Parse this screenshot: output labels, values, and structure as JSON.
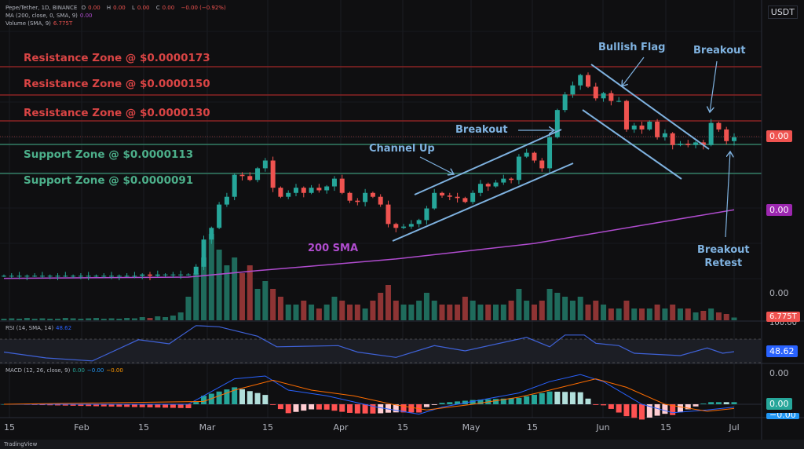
{
  "header": {
    "symbol": "Pepe/Tether, 1D, BINANCE",
    "o_label": "O",
    "o_value": "0.00",
    "h_label": "H",
    "h_value": "0.00",
    "l_label": "L",
    "l_value": "0.00",
    "c_label": "C",
    "c_value": "0.00",
    "change": "−0.00 (−0.92%)",
    "ma_label": "MA (200, close, 0, SMA, 9)",
    "ma_value": "0.00",
    "volume_label": "Volume (SMA, 9)",
    "volume_value": "6.775T",
    "currency": "USDT"
  },
  "zones": {
    "r1": "Resistance Zone @ $0.0000173",
    "r2": "Resistance Zone @ $0.0000150",
    "r3": "Resistance Zone @ $0.0000130",
    "s1": "Support Zone @ $0.0000113",
    "s2": "Support Zone @ $0.0000091"
  },
  "annotations": {
    "channel_up": "Channel Up",
    "breakout1": "Breakout",
    "bullish_flag": "Bullish Flag",
    "breakout2": "Breakout",
    "retest_line1": "Breakout",
    "retest_line2": "Retest",
    "sma": "200 SMA"
  },
  "price_axis": {
    "last_price": "0.00",
    "sma_price": "0.00",
    "volume_top": "0.00",
    "volume_last": "6.775T",
    "rsi_top": "100.00",
    "rsi_last": "48.62",
    "macd_top": "0.00",
    "macd_hist": "0.00",
    "macd_line": "−0.00"
  },
  "rsi": {
    "label": "RSI (14, SMA, 14)",
    "value": "48.62"
  },
  "macd": {
    "label": "MACD (12, 26, close, 9)",
    "v1": "0.00",
    "v2": "−0.00",
    "v3": "−0.00"
  },
  "time_axis": [
    "15",
    "Feb",
    "15",
    "Mar",
    "15",
    "Apr",
    "15",
    "May",
    "15",
    "Jun",
    "15",
    "Jul"
  ],
  "branding": "TradingView",
  "colors": {
    "up": "#26a69a",
    "down": "#ef5350",
    "sma": "#b04ccf",
    "annotation": "#7fb2e0",
    "resistance": "#8a2424",
    "support": "#2f6f5a",
    "rsi": "#3f62d8",
    "macd": "#2962ff",
    "signal": "#ff6d00"
  },
  "chart_data": {
    "type": "candlestick",
    "title": "Pepe/Tether, 1D, BINANCE",
    "price_unit": "0.0000001 USDT",
    "ylim": [
      5,
      185
    ],
    "x_ticks": [
      "15",
      "Feb",
      "15",
      "Mar",
      "15",
      "Apr",
      "15",
      "May",
      "15",
      "Jun",
      "15",
      "Jul"
    ],
    "horizontal_levels": [
      173,
      150,
      130,
      113,
      91
    ],
    "closes": [
      12,
      12,
      12,
      12,
      12,
      12,
      12,
      12,
      12,
      12,
      12,
      12,
      12,
      12,
      12,
      12,
      12,
      12,
      13,
      12,
      13,
      13,
      13,
      13,
      13,
      19,
      40,
      49,
      67,
      73,
      90,
      89,
      86,
      95,
      101,
      80,
      73,
      76,
      80,
      76,
      80,
      78,
      81,
      87,
      76,
      70,
      69,
      76,
      73,
      67,
      52,
      49,
      50,
      52,
      55,
      64,
      76,
      74,
      73,
      72,
      69,
      76,
      83,
      81,
      84,
      87,
      86,
      104,
      107,
      101,
      95,
      119,
      140,
      152,
      159,
      167,
      158,
      149,
      153,
      147,
      147,
      125,
      128,
      125,
      131,
      119,
      122,
      113,
      114,
      113,
      115,
      113,
      130,
      125,
      116,
      119
    ],
    "volume_unit": "T",
    "volumes": [
      4,
      5,
      4,
      6,
      4,
      5,
      4,
      4,
      6,
      5,
      4,
      5,
      6,
      4,
      5,
      4,
      6,
      5,
      8,
      6,
      10,
      8,
      12,
      20,
      60,
      120,
      160,
      220,
      180,
      140,
      160,
      120,
      140,
      80,
      100,
      80,
      60,
      40,
      40,
      50,
      40,
      30,
      40,
      60,
      50,
      40,
      40,
      30,
      50,
      70,
      90,
      50,
      40,
      40,
      50,
      70,
      50,
      40,
      40,
      40,
      60,
      50,
      40,
      40,
      40,
      40,
      50,
      80,
      50,
      40,
      50,
      80,
      70,
      60,
      50,
      60,
      40,
      50,
      40,
      30,
      30,
      50,
      30,
      30,
      30,
      40,
      30,
      40,
      30,
      30,
      20,
      24,
      30,
      20,
      16,
      7
    ],
    "sma200": [
      [
        0,
        10
      ],
      [
        24,
        11
      ],
      [
        33,
        16
      ],
      [
        51,
        25
      ],
      [
        69,
        37
      ],
      [
        84,
        52
      ],
      [
        95,
        63
      ]
    ],
    "rsi": [
      [
        0,
        48
      ],
      [
        5.5,
        38
      ],
      [
        11.5,
        33
      ],
      [
        17.5,
        69
      ],
      [
        21.5,
        62
      ],
      [
        25,
        93
      ],
      [
        28,
        91
      ],
      [
        33,
        75
      ],
      [
        35.5,
        57
      ],
      [
        43.5,
        59
      ],
      [
        46,
        48
      ],
      [
        51,
        39
      ],
      [
        56,
        59
      ],
      [
        60,
        50
      ],
      [
        68,
        73
      ],
      [
        71,
        57
      ],
      [
        73,
        77
      ],
      [
        75.5,
        77
      ],
      [
        77,
        63
      ],
      [
        80,
        59
      ],
      [
        82,
        46
      ],
      [
        88,
        42
      ],
      [
        91.5,
        55
      ],
      [
        93.5,
        46
      ],
      [
        95,
        48.62
      ]
    ],
    "rsi_bands": [
      30,
      70
    ],
    "macd_line": [
      [
        0,
        0
      ],
      [
        24,
        0
      ],
      [
        26,
        3
      ],
      [
        30,
        9
      ],
      [
        34,
        10
      ],
      [
        37,
        5
      ],
      [
        42,
        3
      ],
      [
        48.5,
        -1
      ],
      [
        54,
        -3.5
      ],
      [
        57,
        -1
      ],
      [
        61,
        1
      ],
      [
        67,
        4
      ],
      [
        71,
        8
      ],
      [
        75,
        10.5
      ],
      [
        78,
        8
      ],
      [
        83,
        0
      ],
      [
        87,
        -3
      ],
      [
        91.5,
        -2
      ],
      [
        95,
        -1
      ]
    ],
    "signal_line": [
      [
        0,
        0
      ],
      [
        26,
        1
      ],
      [
        30,
        5
      ],
      [
        35,
        8.5
      ],
      [
        40,
        5
      ],
      [
        45.5,
        3
      ],
      [
        50.5,
        0
      ],
      [
        55,
        -2
      ],
      [
        61,
        0
      ],
      [
        67,
        2.5
      ],
      [
        71,
        5
      ],
      [
        77,
        9
      ],
      [
        81,
        6
      ],
      [
        86,
        0
      ],
      [
        91.5,
        -2.5
      ],
      [
        95,
        -1.5
      ]
    ]
  }
}
